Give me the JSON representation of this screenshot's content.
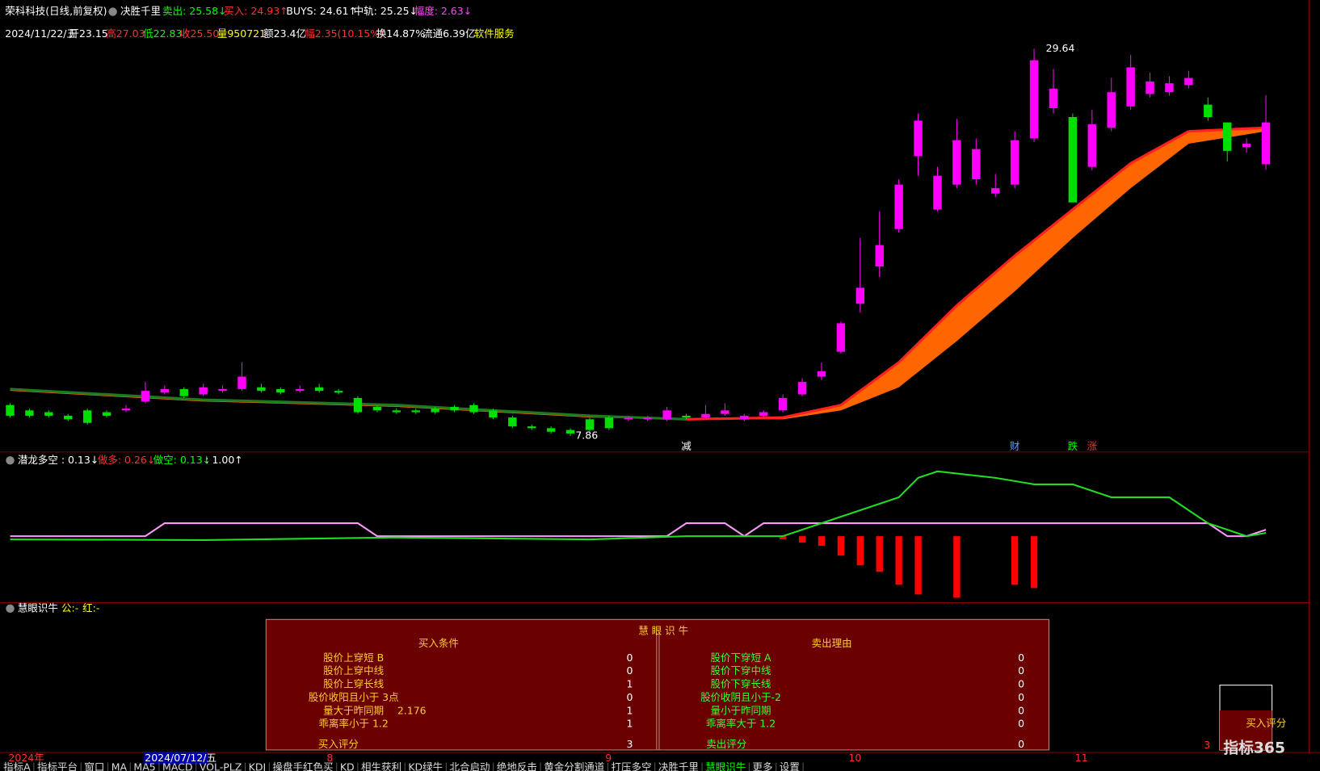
{
  "header": {
    "stock": "荣科科技(日线,前复权)",
    "indicator": "决胜千里",
    "sell": "卖出: 25.58↓",
    "buy": "买入: 24.93↑",
    "buys": "BUYS: 24.61↑",
    "mid": "中轨: 25.25↓",
    "range": "幅度: 2.63↓"
  },
  "info": {
    "date": "2024/11/22/五",
    "open": "开23.15",
    "high": "高27.03",
    "low": "低22.83",
    "close": "收25.50",
    "volume": "量950721",
    "amount": "额23.4亿",
    "change": "幅2.35(10.15%)",
    "turnover": "换14.87%",
    "float": "流通6.39亿",
    "sector": "软件服务"
  },
  "price_chart": {
    "candles": [
      [
        9.6,
        9.0,
        9.7,
        8.9
      ],
      [
        9.3,
        9.0,
        9.4,
        8.9
      ],
      [
        9.2,
        9.0,
        9.3,
        8.9
      ],
      [
        9.0,
        8.8,
        9.1,
        8.7
      ],
      [
        9.3,
        8.6,
        9.4,
        8.5
      ],
      [
        9.2,
        9.0,
        9.3,
        8.9
      ],
      [
        9.3,
        9.4,
        9.6,
        9.2
      ],
      [
        9.8,
        10.4,
        10.9,
        9.7
      ],
      [
        10.3,
        10.5,
        10.7,
        10.2
      ],
      [
        10.5,
        10.1,
        10.6,
        10.0
      ],
      [
        10.2,
        10.6,
        10.8,
        10.1
      ],
      [
        10.4,
        10.5,
        10.7,
        10.3
      ],
      [
        10.5,
        11.2,
        12.0,
        10.4
      ],
      [
        10.6,
        10.4,
        10.8,
        10.3
      ],
      [
        10.5,
        10.3,
        10.6,
        10.2
      ],
      [
        10.4,
        10.5,
        10.7,
        10.3
      ],
      [
        10.6,
        10.4,
        10.8,
        10.3
      ],
      [
        10.4,
        10.3,
        10.5,
        10.2
      ],
      [
        10.0,
        9.2,
        10.1,
        9.1
      ],
      [
        9.5,
        9.3,
        9.6,
        9.2
      ],
      [
        9.3,
        9.2,
        9.4,
        9.1
      ],
      [
        9.3,
        9.2,
        9.4,
        9.1
      ],
      [
        9.4,
        9.2,
        9.5,
        9.1
      ],
      [
        9.5,
        9.3,
        9.6,
        9.2
      ],
      [
        9.6,
        9.2,
        9.7,
        9.1
      ],
      [
        9.3,
        8.9,
        9.4,
        8.8
      ],
      [
        8.9,
        8.4,
        9.0,
        8.3
      ],
      [
        8.4,
        8.3,
        8.5,
        8.2
      ],
      [
        8.3,
        8.1,
        8.4,
        8.0
      ],
      [
        8.2,
        8.0,
        8.3,
        7.86
      ],
      [
        8.8,
        8.2,
        8.9,
        8.1
      ],
      [
        8.9,
        8.3,
        9.0,
        8.2
      ],
      [
        8.8,
        8.9,
        9.0,
        8.7
      ],
      [
        8.8,
        8.9,
        9.0,
        8.7
      ],
      [
        8.8,
        9.3,
        9.5,
        8.7
      ],
      [
        9.0,
        8.9,
        9.1,
        8.8
      ],
      [
        8.9,
        9.1,
        9.6,
        8.8
      ],
      [
        9.1,
        9.3,
        9.7,
        9.0
      ],
      [
        8.8,
        9.0,
        9.1,
        8.7
      ],
      [
        9.0,
        9.2,
        9.3,
        8.9
      ],
      [
        9.3,
        10.0,
        10.2,
        9.2
      ],
      [
        10.2,
        10.9,
        11.1,
        10.1
      ],
      [
        11.2,
        11.5,
        12.0,
        11.0
      ],
      [
        12.6,
        14.2,
        14.3,
        12.5
      ],
      [
        15.3,
        16.2,
        19.0,
        14.8
      ],
      [
        17.4,
        18.6,
        20.5,
        16.8
      ],
      [
        19.5,
        22.0,
        22.3,
        19.3
      ],
      [
        23.6,
        25.6,
        26.0,
        22.5
      ],
      [
        20.6,
        22.5,
        23.0,
        20.5
      ],
      [
        22.0,
        24.5,
        25.7,
        21.8
      ],
      [
        22.3,
        24.0,
        24.6,
        22.0
      ],
      [
        21.5,
        21.8,
        22.6,
        21.3
      ],
      [
        22.0,
        24.5,
        25.0,
        21.8
      ],
      [
        24.6,
        29.0,
        29.64,
        24.4
      ],
      [
        26.3,
        27.4,
        28.5,
        26.0
      ],
      [
        25.8,
        21.0,
        26.0,
        21.0
      ],
      [
        23.0,
        25.4,
        26.2,
        22.8
      ],
      [
        25.2,
        27.2,
        28.0,
        25.0
      ],
      [
        26.4,
        28.6,
        29.3,
        26.2
      ],
      [
        27.1,
        27.8,
        28.3,
        26.9
      ],
      [
        27.2,
        27.7,
        28.1,
        27.0
      ],
      [
        27.6,
        28.0,
        28.4,
        27.4
      ],
      [
        26.5,
        25.8,
        26.9,
        25.6
      ],
      [
        25.5,
        23.9,
        25.5,
        23.3
      ],
      [
        24.1,
        24.3,
        24.6,
        23.8
      ],
      [
        23.15,
        25.5,
        27.03,
        22.83
      ]
    ],
    "up_color": "#ff00ff",
    "down_color": "#00e000",
    "band_color": "#ff6600",
    "band_early_color": "#1f7a1f",
    "band_line_color": "#ff2020",
    "band": {
      "index": [
        0,
        10,
        20,
        30,
        35,
        40,
        43,
        46,
        49,
        52,
        55,
        58,
        61,
        65
      ],
      "upper": [
        10.5,
        9.9,
        9.6,
        9.0,
        8.8,
        8.9,
        9.6,
        12.0,
        15.2,
        18.0,
        20.6,
        23.2,
        25.0,
        25.2
      ],
      "lower": [
        10.4,
        9.8,
        9.5,
        8.9,
        8.8,
        8.8,
        9.3,
        10.6,
        13.2,
        16.0,
        19.0,
        21.8,
        24.3,
        25.0
      ]
    },
    "high_label": 29.64,
    "low_label": 7.86,
    "markers": [
      {
        "index": 35,
        "text": "减",
        "color": "#ffffff"
      },
      {
        "index": 52,
        "text": "财",
        "color": "#5aa0ff"
      },
      {
        "index": 55,
        "text": "跌",
        "color": "#00ff00"
      },
      {
        "index": 56,
        "text": "涨",
        "color": "#ff3030"
      }
    ]
  },
  "panel2": {
    "title": "潜龙多空 : 0.13↓",
    "long": "做多: 0.26↓",
    "short": "做空: 0.13↓",
    "ratio": ": 1.00↑",
    "green_line": {
      "index": [
        0,
        10,
        20,
        30,
        35,
        40,
        43,
        46,
        47,
        48,
        51,
        53,
        55,
        57,
        60,
        62,
        64,
        65
      ],
      "values": [
        -0.05,
        -0.06,
        -0.02,
        -0.05,
        0,
        0,
        0.3,
        0.6,
        0.9,
        1.0,
        0.9,
        0.8,
        0.8,
        0.6,
        0.6,
        0.2,
        0,
        0.05
      ]
    },
    "pink_line": {
      "index": [
        0,
        7,
        8,
        12,
        18,
        19,
        34,
        35,
        37,
        38,
        39,
        62,
        63,
        64,
        65
      ],
      "values": [
        0,
        0,
        0.2,
        0.2,
        0.2,
        0,
        0,
        0.2,
        0.2,
        0,
        0.2,
        0.2,
        0,
        0,
        0.1
      ]
    },
    "red_bars": {
      "index": [
        40,
        41,
        42,
        43,
        44,
        45,
        46,
        47,
        49,
        52,
        53
      ],
      "values": [
        -0.05,
        -0.1,
        -0.15,
        -0.3,
        -0.45,
        -0.55,
        -0.75,
        -0.9,
        -0.95,
        -0.75,
        -0.8
      ]
    }
  },
  "panel3": {
    "title": "慧眼识牛",
    "gong": "公:-",
    "hong": "红:-"
  },
  "table": {
    "title": "慧 眼 识 牛",
    "left_header": "买入条件",
    "right_header": "卖出理由",
    "left_rows": [
      [
        "股价上穿短 B",
        "",
        0
      ],
      [
        "股价上穿中线",
        "",
        0
      ],
      [
        "股价上穿长线",
        "",
        1
      ],
      [
        "股价收阳且小于 3点",
        "",
        0
      ],
      [
        "量大于昨同期",
        2.176,
        1
      ],
      [
        "乖离率小于 1.2",
        "",
        1
      ]
    ],
    "right_rows": [
      [
        "股价下穿短 A",
        0
      ],
      [
        "股价下穿中线",
        0
      ],
      [
        "股价下穿长线",
        0
      ],
      [
        "股价收阴且小于-2",
        0
      ],
      [
        "量小于昨同期",
        0
      ],
      [
        "乖离率大于 1.2",
        0
      ]
    ],
    "left_score_label": "买入评分",
    "left_score": 3,
    "right_score_label": "卖出评分",
    "right_score": 0
  },
  "score_box": {
    "label": "买入评分",
    "value": 3
  },
  "date_axis": [
    "2024年",
    "2024/07/12/五",
    "8",
    "9",
    "10",
    "11"
  ],
  "tabs": [
    "指标A",
    "指标平台",
    "窗口",
    "MA",
    "MA5",
    "MACD",
    "VOL-PLZ",
    "KDJ",
    "操盘手红色买",
    "KD",
    "相生获利",
    "KD绿牛",
    "北合启动",
    "绝地反击",
    "黄金分割通道",
    "打压多空",
    "决胜千里",
    "慧眼识牛",
    "更多",
    "设置"
  ],
  "watermark": "指标365"
}
